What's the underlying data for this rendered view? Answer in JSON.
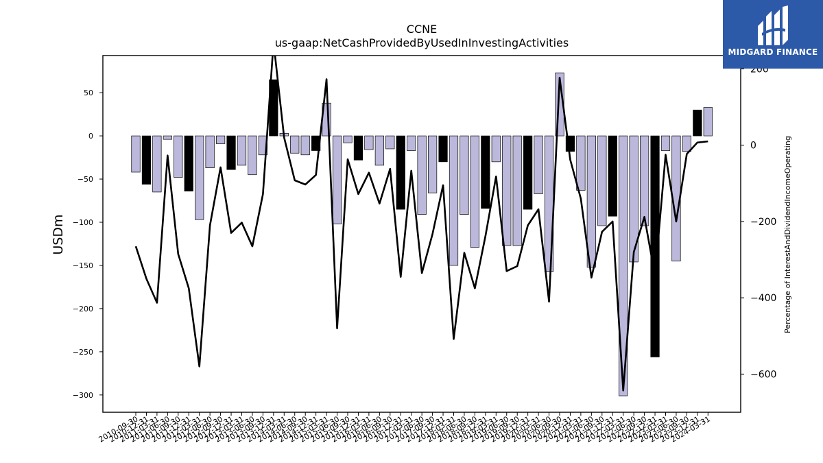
{
  "branding": {
    "logo_text": "MIDGARD FINANCE",
    "logo_bg": "#2d5aa8"
  },
  "chart_data": {
    "type": "bar",
    "title": "CCNE",
    "subtitle": "us-gaap:NetCashProvidedByUsedInInvestingActivities",
    "ylabel": "USDm",
    "y2label": "Percentage of InterestAndDividendIncomeOperating",
    "ylim": [
      -320,
      93
    ],
    "y2lim": [
      -700,
      235
    ],
    "yticks": [
      50,
      0,
      -50,
      -100,
      -150,
      -200,
      -250,
      -300
    ],
    "y2ticks": [
      200,
      0,
      -200,
      -400,
      -600
    ],
    "colors": {
      "q4_bar": "#000000",
      "other_bar": "#bbb8dc",
      "line": "#000000"
    },
    "categories": [
      "2010-09-30",
      "2010-12-31",
      "2011-03-31",
      "2011-06-30",
      "2011-09-30",
      "2011-12-31",
      "2012-03-31",
      "2012-06-30",
      "2012-09-30",
      "2012-12-31",
      "2013-03-31",
      "2013-06-30",
      "2013-09-30",
      "2013-12-31",
      "2014-03-31",
      "2014-06-30",
      "2014-09-30",
      "2014-12-31",
      "2015-03-31",
      "2015-06-30",
      "2015-09-30",
      "2015-12-31",
      "2016-03-31",
      "2016-06-30",
      "2016-09-30",
      "2016-12-31",
      "2017-03-31",
      "2017-06-30",
      "2017-09-30",
      "2017-12-31",
      "2018-03-31",
      "2018-06-30",
      "2018-09-30",
      "2018-12-31",
      "2019-03-31",
      "2019-06-30",
      "2019-09-30",
      "2019-12-31",
      "2020-03-31",
      "2020-06-30",
      "2020-09-30",
      "2020-12-31",
      "2021-03-31",
      "2021-06-30",
      "2021-09-30",
      "2021-12-31",
      "2022-03-31",
      "2022-06-30",
      "2022-09-30",
      "2022-12-31",
      "2023-03-31",
      "2023-06-30",
      "2023-09-30",
      "2023-12-31",
      "2024-03-31"
    ],
    "series": [
      {
        "values": [
          -42,
          -56,
          -65,
          -4,
          -48,
          -64,
          -97,
          -37,
          -9,
          -39,
          -34,
          -45,
          -22,
          65,
          3,
          -20,
          -22,
          -17,
          38,
          -102,
          -8,
          -28,
          -16,
          -34,
          -15,
          -85,
          -17,
          -91,
          -66,
          -30,
          -150,
          -91,
          -129,
          -84,
          -30,
          -127,
          -127,
          -85,
          -67,
          -157,
          73,
          -18,
          -63,
          -152,
          -104,
          -93,
          -301,
          -146,
          -104,
          -256,
          -17,
          -145,
          -18,
          30,
          33
        ]
      },
      {
        "axis": "right",
        "values": [
          -265,
          -350,
          -413,
          -27,
          -285,
          -375,
          -580,
          -210,
          -58,
          -230,
          -203,
          -265,
          -128,
          270,
          20,
          -92,
          -103,
          -78,
          173,
          -480,
          -37,
          -128,
          -72,
          -153,
          -62,
          -345,
          -67,
          -335,
          -233,
          -105,
          -508,
          -282,
          -375,
          -238,
          -82,
          -330,
          -317,
          -210,
          -168,
          -410,
          177,
          -38,
          -140,
          -347,
          -227,
          -200,
          -643,
          -280,
          -188,
          -342,
          -25,
          -200,
          -23,
          7,
          10
        ]
      }
    ]
  }
}
